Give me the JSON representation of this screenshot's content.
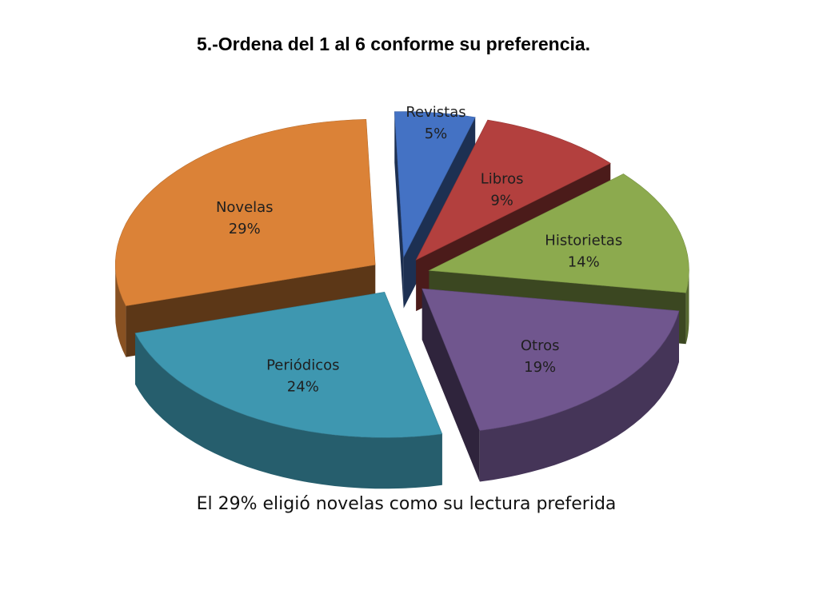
{
  "title": "5.-Ordena del 1 al 6 conforme su preferencia.",
  "caption": "El 29% eligió novelas como su lectura preferida",
  "chart_data": {
    "type": "pie",
    "style": "3d-exploded",
    "title": "",
    "legend": "none",
    "slices": [
      {
        "label": "Revistas",
        "value": 5,
        "display": "5%",
        "color": "#4472C4"
      },
      {
        "label": "Libros",
        "value": 9,
        "display": "9%",
        "color": "#B3403E"
      },
      {
        "label": "Historietas",
        "value": 14,
        "display": "14%",
        "color": "#8CAA4E"
      },
      {
        "label": "Otros",
        "value": 19,
        "display": "19%",
        "color": "#70568E"
      },
      {
        "label": "Periódicos",
        "value": 24,
        "display": "24%",
        "color": "#3E97B0"
      },
      {
        "label": "Novelas",
        "value": 29,
        "display": "29%",
        "color": "#DB8237"
      }
    ]
  }
}
